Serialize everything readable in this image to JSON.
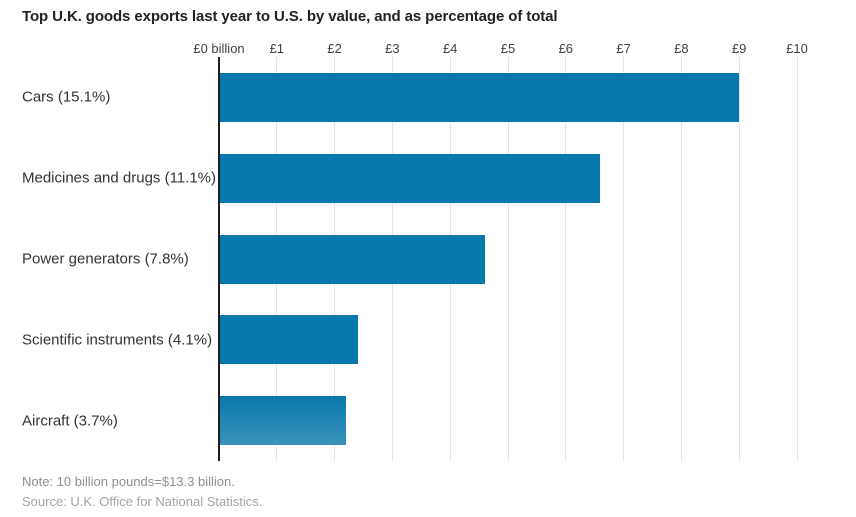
{
  "title": "Top U.K. goods exports last year to U.S. by value, and as percentage of total",
  "note": "Note: 10 billion pounds=$13.3 billion.",
  "source": "Source: U.K. Office for National Statistics.",
  "colors": {
    "bar": "#0778ab",
    "bar_gradient_bottom": "#3b93bb",
    "gridline": "#e5e5e5",
    "axis": "#1f1f1f"
  },
  "chart_data": {
    "type": "bar",
    "orientation": "horizontal",
    "title": "Top U.K. goods exports last year to U.S. by value, and as percentage of total",
    "unit": "billion pounds (GBP)",
    "categories": [
      "Cars (15.1%)",
      "Medicines and drugs (11.1%)",
      "Power generators (7.8%)",
      "Scientific instruments (4.1%)",
      "Aircraft (3.7%)"
    ],
    "values": [
      9.0,
      6.6,
      4.6,
      2.4,
      2.2
    ],
    "percent_of_total": [
      15.1,
      11.1,
      7.8,
      4.1,
      3.7
    ],
    "x_ticks": [
      "£0 billion",
      "£1",
      "£2",
      "£3",
      "£4",
      "£5",
      "£6",
      "£7",
      "£8",
      "£9",
      "£10"
    ],
    "x_tick_values": [
      0,
      1,
      2,
      3,
      4,
      5,
      6,
      7,
      8,
      9,
      10
    ],
    "xlim": [
      0,
      10
    ],
    "xlabel": "",
    "ylabel": "",
    "grid": true,
    "legend": false
  }
}
